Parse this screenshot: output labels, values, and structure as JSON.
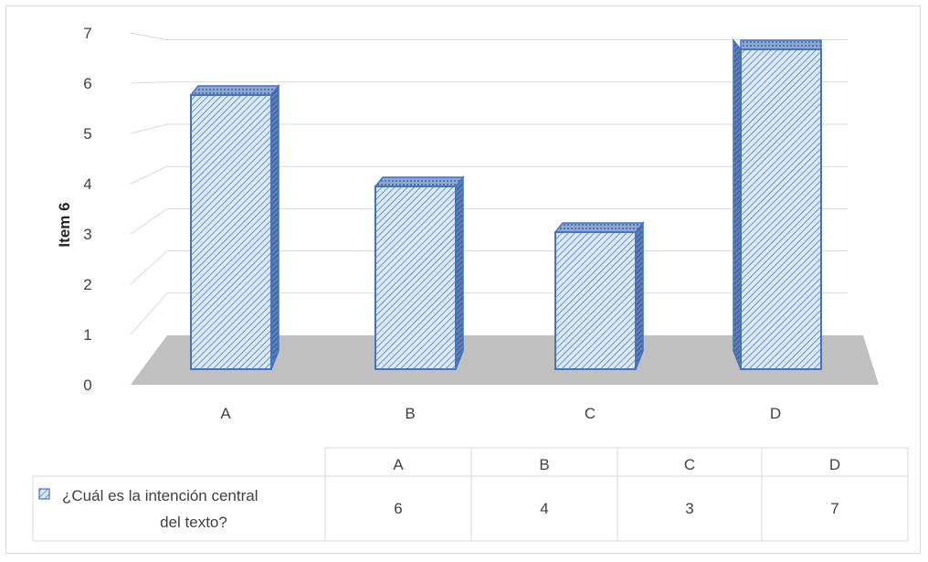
{
  "chart_data": {
    "type": "bar",
    "style": "3d-column",
    "categories": [
      "A",
      "B",
      "C",
      "D"
    ],
    "series": [
      {
        "name": "¿Cuál es la intención central del texto?",
        "values": [
          6,
          4,
          3,
          7
        ]
      }
    ],
    "title": "",
    "xlabel": "",
    "ylabel": "Item 6",
    "ylim": [
      0,
      7
    ],
    "yticks": [
      "0",
      "1",
      "2",
      "3",
      "4",
      "5",
      "6",
      "7"
    ],
    "grid": true,
    "legend": "data-table-bottom",
    "colors": {
      "bar_fill": "#dce9f8",
      "bar_hatch": "#4f7fc0",
      "bar_stroke": "#4472c4",
      "bar_side": "#2f4f7f",
      "floor": "#c0c0c0",
      "grid": "#d9d9d9"
    }
  },
  "data_table": {
    "header": [
      "A",
      "B",
      "C",
      "D"
    ],
    "row_label": "¿Cuál es la intención central del texto?",
    "row_label_lines": [
      "¿Cuál es la intención central",
      "del texto?"
    ],
    "row_values": [
      "6",
      "4",
      "3",
      "7"
    ]
  }
}
